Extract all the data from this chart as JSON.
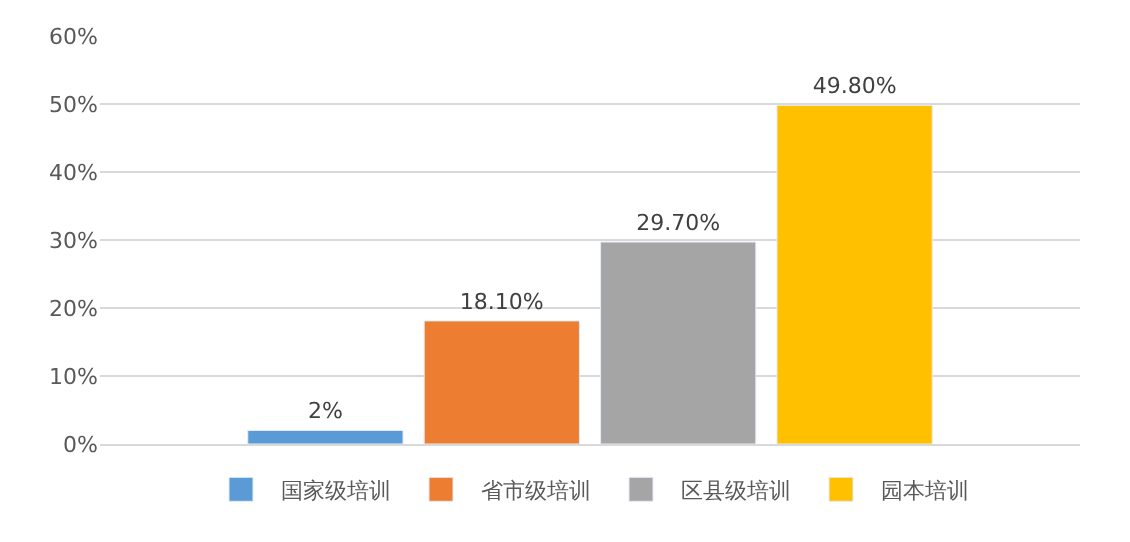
{
  "chart_data": {
    "type": "bar",
    "categories": [
      null
    ],
    "series": [
      {
        "name": "国家级培训",
        "color": "#5b9bd5",
        "values": [
          2
        ],
        "value_labels": [
          "2%"
        ]
      },
      {
        "name": "省市级培训",
        "color": "#ed7d31",
        "values": [
          18.1
        ],
        "value_labels": [
          "18.10%"
        ]
      },
      {
        "name": "区县级培训",
        "color": "#a5a5a5",
        "values": [
          29.7
        ],
        "value_labels": [
          "29.70%"
        ]
      },
      {
        "name": "园本培训",
        "color": "#ffc000",
        "values": [
          49.8
        ],
        "value_labels": [
          "49.80%"
        ]
      }
    ],
    "ylim": [
      0,
      60
    ],
    "yticks": [
      {
        "value": 0,
        "label": "0%"
      },
      {
        "value": 10,
        "label": "10%"
      },
      {
        "value": 20,
        "label": "20%"
      },
      {
        "value": 30,
        "label": "30%"
      },
      {
        "value": 40,
        "label": "40%"
      },
      {
        "value": 50,
        "label": "50%"
      },
      {
        "value": 60,
        "label": "60%"
      }
    ],
    "grid": "y",
    "legend": "bottom"
  }
}
